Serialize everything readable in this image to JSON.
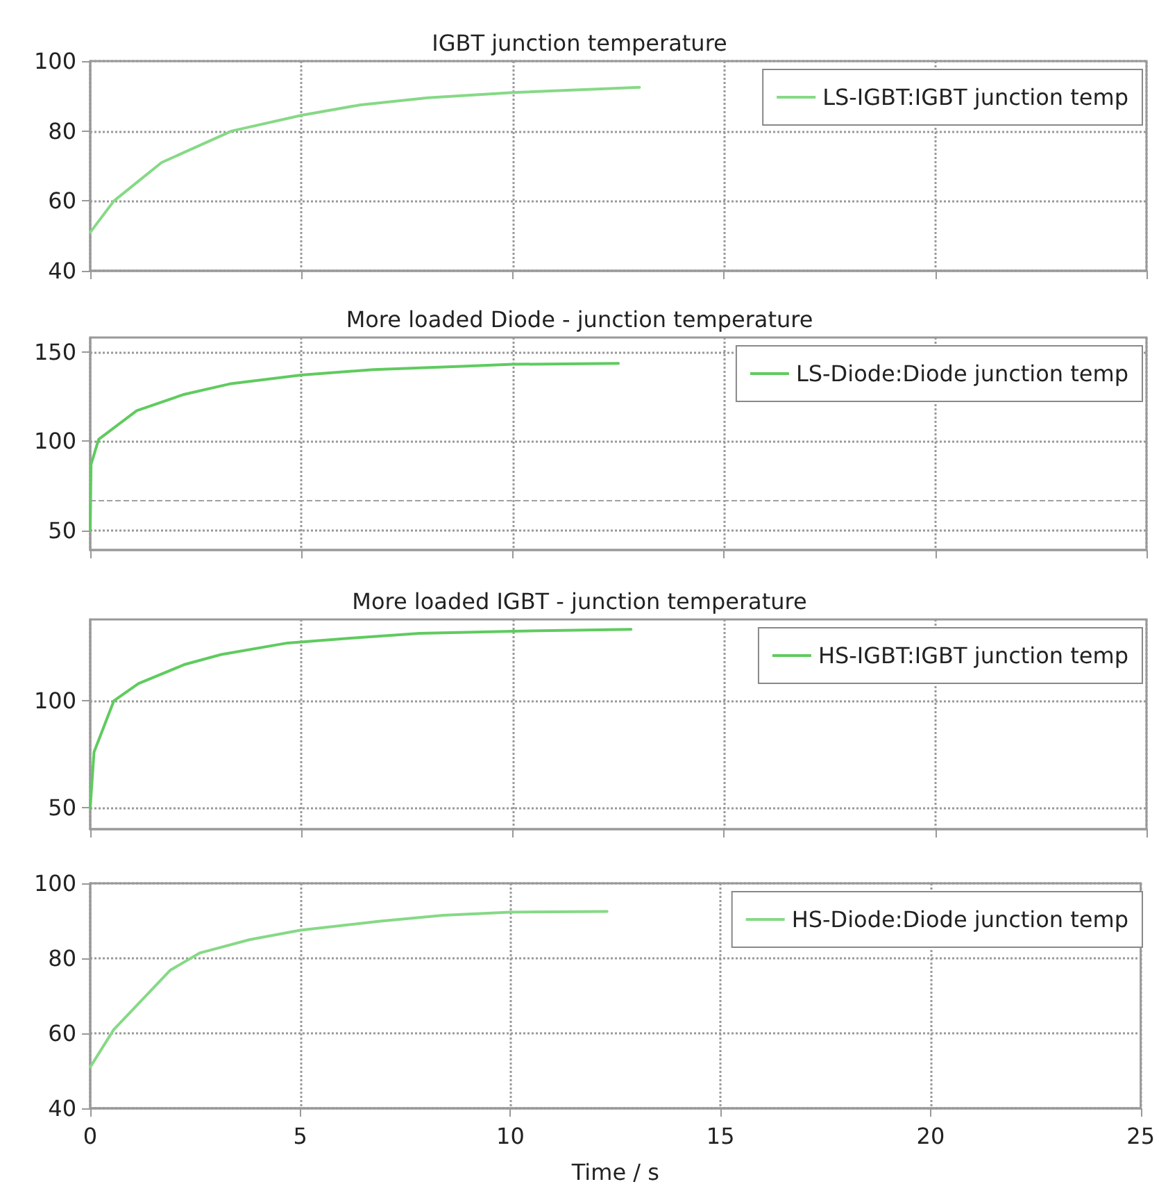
{
  "chart_data": [
    {
      "type": "line",
      "title": "IGBT junction temperature",
      "x": [
        0,
        0.56,
        1.69,
        3.35,
        5,
        6.4,
        8,
        10,
        13
      ],
      "series": [
        {
          "name": "LS-IGBT:IGBT junction temp",
          "color": "#86d986",
          "values": [
            51,
            60,
            71,
            80,
            84.5,
            87.5,
            89.5,
            91,
            92.5
          ]
        }
      ],
      "xlim": [
        0,
        25
      ],
      "xticks": [
        0,
        5,
        10,
        15,
        20,
        25
      ],
      "ylim": [
        40,
        100
      ],
      "yticks": [
        40,
        60,
        80,
        100
      ],
      "tick_labels": "y",
      "grid": true,
      "legend": "top right"
    },
    {
      "type": "line",
      "title": "More loaded Diode - junction temperature",
      "x": [
        0,
        0.02,
        0.2,
        1.1,
        2.2,
        3.3,
        5,
        6.7,
        8.9,
        10,
        12.5
      ],
      "series": [
        {
          "name": "LS-Diode:Diode junction temp",
          "color": "#5fcb5f",
          "values": [
            50,
            87,
            101,
            117,
            126,
            132,
            137,
            140,
            142,
            143,
            143.5
          ]
        }
      ],
      "xlim": [
        0,
        25
      ],
      "xticks": [
        0,
        5,
        10,
        15,
        20,
        25
      ],
      "ylim": [
        39,
        158
      ],
      "yticks": [
        50,
        100,
        150
      ],
      "tick_labels": "y",
      "grid": true,
      "legend": "top right",
      "ref_lines": [
        {
          "axis": "y",
          "value": 67,
          "label": null,
          "color": "#a0a0a0",
          "line_style": "dashed"
        }
      ]
    },
    {
      "type": "line",
      "title": "More loaded IGBT - junction temperature",
      "x": [
        0,
        0.09,
        0.56,
        1.14,
        2.24,
        3.1,
        4.67,
        6.2,
        7.8,
        10,
        12.8
      ],
      "series": [
        {
          "name": "HS-IGBT:IGBT junction temp",
          "color": "#5fcb5f",
          "values": [
            50,
            76,
            100,
            108,
            117,
            121.6,
            127,
            129.3,
            131.5,
            132.5,
            133.4
          ]
        }
      ],
      "xlim": [
        0,
        25
      ],
      "xticks": [
        0,
        5,
        10,
        15,
        20,
        25
      ],
      "ylim": [
        40,
        138
      ],
      "yticks": [
        50,
        100
      ],
      "tick_labels": "y",
      "grid": true,
      "legend": "top right"
    },
    {
      "type": "line",
      "xlabel": "Time / s",
      "x": [
        0,
        0.56,
        1.9,
        2.6,
        3.8,
        5,
        6.9,
        8.4,
        10,
        12.3
      ],
      "series": [
        {
          "name": "HS-Diode:Diode junction temp",
          "color": "#86d986",
          "values": [
            51,
            61,
            76.8,
            81.4,
            85,
            87.5,
            89.9,
            91.5,
            92.3,
            92.5
          ]
        }
      ],
      "xlim": [
        0,
        25
      ],
      "xticks": [
        0,
        5,
        10,
        15,
        20,
        25
      ],
      "ylim": [
        40,
        100
      ],
      "yticks": [
        40,
        60,
        80,
        100
      ],
      "grid": true,
      "legend": "top right"
    }
  ]
}
